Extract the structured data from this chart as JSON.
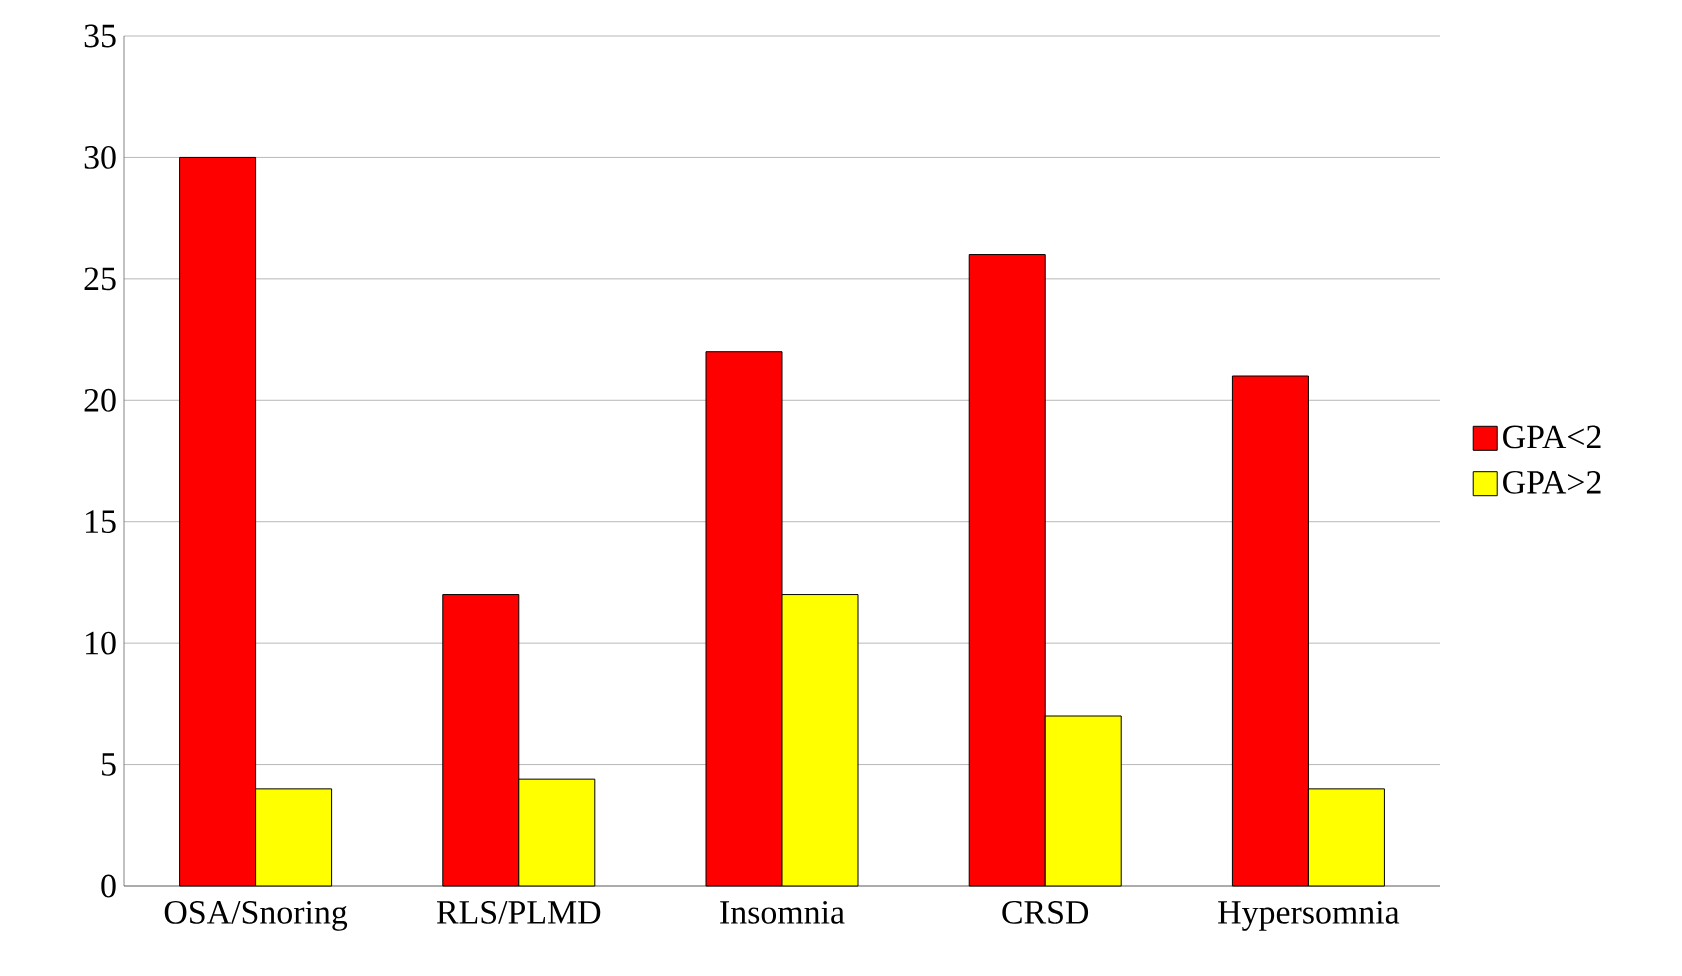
{
  "chart_data": {
    "type": "bar",
    "categories": [
      "OSA/Snoring",
      "RLS/PLMD",
      "Insomnia",
      "CRSD",
      "Hypersomnia"
    ],
    "series": [
      {
        "name": "GPA<2",
        "color": "#ff0000",
        "values": [
          30,
          12,
          22,
          26,
          21
        ]
      },
      {
        "name": "GPA>2",
        "color": "#ffff00",
        "values": [
          4,
          4.4,
          12,
          7,
          4
        ]
      }
    ],
    "ylim": [
      0,
      35
    ],
    "yticks": [
      0,
      5,
      10,
      15,
      20,
      25,
      30,
      35
    ],
    "grid": "y",
    "legend": "right"
  }
}
